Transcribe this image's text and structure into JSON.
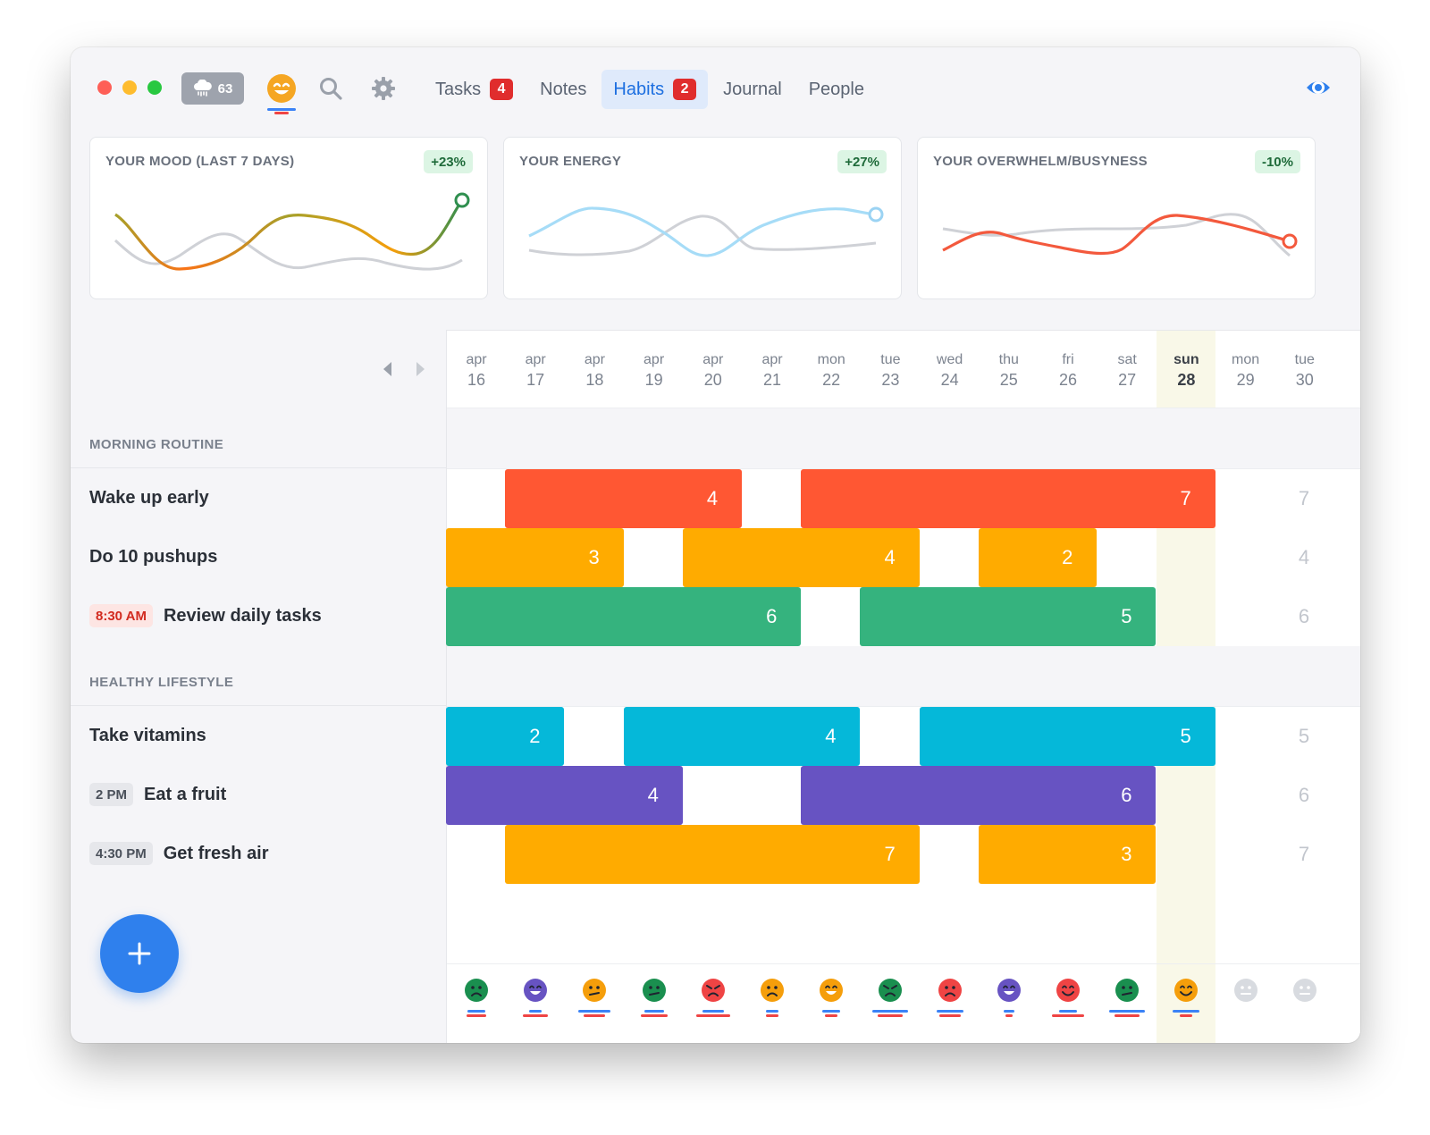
{
  "titlebar": {
    "weather_value": "63",
    "tabs": [
      {
        "label": "Tasks",
        "badge": "4",
        "active": false
      },
      {
        "label": "Notes",
        "badge": "",
        "active": false
      },
      {
        "label": "Habits",
        "badge": "2",
        "active": true
      },
      {
        "label": "Journal",
        "badge": "",
        "active": false
      },
      {
        "label": "People",
        "badge": "",
        "active": false
      }
    ]
  },
  "cards": [
    {
      "title": "YOUR MOOD (LAST 7 DAYS)",
      "change": "+23%"
    },
    {
      "title": "YOUR ENERGY",
      "change": "+27%"
    },
    {
      "title": "YOUR OVERWHELM/BUSYNESS",
      "change": "-10%"
    }
  ],
  "days": [
    {
      "top": "apr",
      "num": "16"
    },
    {
      "top": "apr",
      "num": "17"
    },
    {
      "top": "apr",
      "num": "18"
    },
    {
      "top": "apr",
      "num": "19"
    },
    {
      "top": "apr",
      "num": "20"
    },
    {
      "top": "apr",
      "num": "21"
    },
    {
      "top": "mon",
      "num": "22"
    },
    {
      "top": "tue",
      "num": "23"
    },
    {
      "top": "wed",
      "num": "24"
    },
    {
      "top": "thu",
      "num": "25"
    },
    {
      "top": "fri",
      "num": "26"
    },
    {
      "top": "sat",
      "num": "27"
    },
    {
      "top": "sun",
      "num": "28"
    },
    {
      "top": "mon",
      "num": "29"
    },
    {
      "top": "tue",
      "num": "30"
    }
  ],
  "sections": [
    {
      "label": "MORNING ROUTINE",
      "habits": [
        {
          "name": "Wake up early",
          "time": "",
          "goal": "7",
          "color": "#ff5733",
          "streaks": [
            {
              "start": 1,
              "len": 4,
              "count": "4"
            },
            {
              "start": 6,
              "len": 7,
              "count": "7"
            }
          ]
        },
        {
          "name": "Do 10 pushups",
          "time": "",
          "goal": "4",
          "color": "#ffab00",
          "streaks": [
            {
              "start": 0,
              "len": 3,
              "count": "3"
            },
            {
              "start": 4,
              "len": 4,
              "count": "4"
            },
            {
              "start": 9,
              "len": 2,
              "count": "2"
            }
          ]
        },
        {
          "name": "Review daily tasks",
          "time": "8:30 AM",
          "time_style": "red",
          "goal": "6",
          "color": "#35b37e",
          "streaks": [
            {
              "start": 0,
              "len": 6,
              "count": "6"
            },
            {
              "start": 7,
              "len": 5,
              "count": "5"
            }
          ]
        }
      ]
    },
    {
      "label": "HEALTHY LIFESTYLE",
      "habits": [
        {
          "name": "Take vitamins",
          "time": "",
          "goal": "5",
          "color": "#05b8d9",
          "streaks": [
            {
              "start": 0,
              "len": 2,
              "count": "2"
            },
            {
              "start": 3,
              "len": 4,
              "count": "4"
            },
            {
              "start": 8,
              "len": 5,
              "count": "5"
            }
          ]
        },
        {
          "name": "Eat a fruit",
          "time": "2 PM",
          "time_style": "gray",
          "goal": "6",
          "color": "#6753c2",
          "streaks": [
            {
              "start": 0,
              "len": 4,
              "count": "4"
            },
            {
              "start": 6,
              "len": 6,
              "count": "6"
            }
          ]
        },
        {
          "name": "Get fresh air",
          "time": "4:30 PM",
          "time_style": "gray",
          "goal": "7",
          "color": "#ffab00",
          "streaks": [
            {
              "start": 1,
              "len": 7,
              "count": "7"
            },
            {
              "start": 9,
              "len": 3,
              "count": "3"
            }
          ]
        }
      ]
    }
  ],
  "mood_faces": [
    {
      "color": "#1a8f4f",
      "expr": "sad",
      "blue": 0.5,
      "red": 0.55
    },
    {
      "color": "#6753c2",
      "expr": "grin",
      "blue": 0.35,
      "red": 0.7
    },
    {
      "color": "#f59e0b",
      "expr": "meh",
      "blue": 0.9,
      "red": 0.6
    },
    {
      "color": "#1a8f4f",
      "expr": "meh",
      "blue": 0.55,
      "red": 0.75
    },
    {
      "color": "#ef4444",
      "expr": "angry",
      "blue": 0.6,
      "red": 0.95
    },
    {
      "color": "#f59e0b",
      "expr": "sad",
      "blue": 0.35,
      "red": 0.35
    },
    {
      "color": "#f59e0b",
      "expr": "grin",
      "blue": 0.5,
      "red": 0.35
    },
    {
      "color": "#1a8f4f",
      "expr": "angry",
      "blue": 1.0,
      "red": 0.7
    },
    {
      "color": "#ef4444",
      "expr": "sad",
      "blue": 0.75,
      "red": 0.6
    },
    {
      "color": "#6753c2",
      "expr": "grin",
      "blue": 0.3,
      "red": 0.2
    },
    {
      "color": "#ef4444",
      "expr": "happy",
      "blue": 0.5,
      "red": 0.9
    },
    {
      "color": "#1a8f4f",
      "expr": "meh",
      "blue": 1.0,
      "red": 0.7
    },
    {
      "color": "#f59e0b",
      "expr": "happy",
      "blue": 0.75,
      "red": 0.35
    },
    {
      "color": "#d8dbe0",
      "expr": "neutral",
      "blue": 0,
      "red": 0
    },
    {
      "color": "#d8dbe0",
      "expr": "neutral",
      "blue": 0,
      "red": 0
    }
  ],
  "today_index": 12
}
